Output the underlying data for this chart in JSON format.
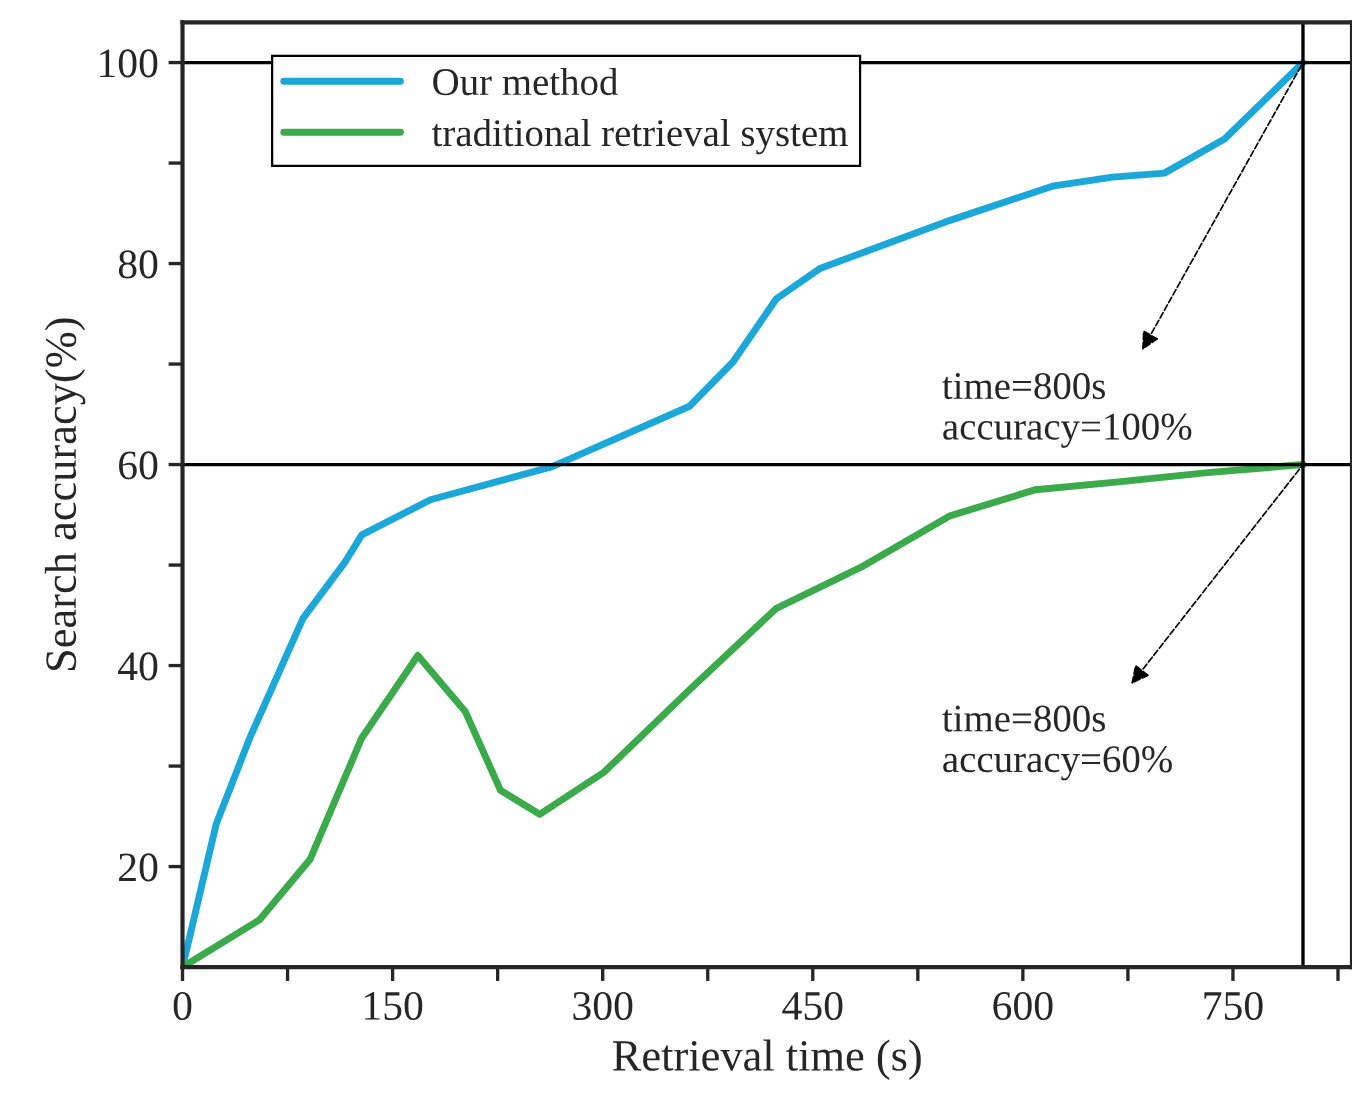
{
  "chart_data": {
    "type": "line",
    "xlabel": "Retrieval time (s)",
    "ylabel": "Search accuracy(%)",
    "series": [
      {
        "name": "Our method",
        "color": "#1ba8d8",
        "x": [
          0,
          24,
          48,
          86,
          116,
          128,
          177,
          264,
          362,
          393,
          424,
          455,
          548,
          621,
          664,
          701,
          744,
          800
        ],
        "values": [
          10,
          24.2,
          32.8,
          44.7,
          50.3,
          53,
          56.5,
          59.8,
          65.8,
          70.2,
          76.5,
          79.5,
          84.3,
          87.7,
          88.6,
          89,
          92.4,
          100
        ]
      },
      {
        "name": "traditional retrieval system",
        "color": "#3aaa4a",
        "x": [
          0,
          55,
          91,
          128,
          168,
          202,
          227,
          255,
          301,
          362,
          424,
          486,
          548,
          609,
          670,
          732,
          800
        ],
        "values": [
          10,
          14.7,
          20.7,
          32.8,
          41,
          35.4,
          27.6,
          25.2,
          29.4,
          37.6,
          45.7,
          49.9,
          54.9,
          57.5,
          58.3,
          59.2,
          60
        ]
      }
    ],
    "xlim": [
      0,
      835
    ],
    "ylim": [
      10,
      104
    ],
    "xticks": [
      0,
      {
        "value": 75,
        "label": null
      },
      150,
      {
        "value": 225,
        "label": null
      },
      300,
      {
        "value": 375,
        "label": null
      },
      450,
      {
        "value": 525,
        "label": null
      },
      600,
      {
        "value": 675,
        "label": null
      },
      750,
      {
        "value": 825,
        "label": null
      }
    ],
    "yticks": [
      20,
      {
        "value": 30,
        "label": null
      },
      40,
      {
        "value": 50,
        "label": null
      },
      60,
      {
        "value": 70,
        "label": null
      },
      80,
      {
        "value": 90,
        "label": null
      },
      100
    ],
    "ref_lines": [
      {
        "axis": "y",
        "value": 100,
        "color": "#000000"
      },
      {
        "axis": "y",
        "value": 60,
        "color": "#000000"
      },
      {
        "axis": "x",
        "value": 800,
        "color": "#000000"
      }
    ],
    "annotations": [
      {
        "text": "time=800s\naccuracy=100%",
        "x": 800,
        "y": 100
      },
      {
        "text": "time=800s\naccuracy=60%",
        "x": 800,
        "y": 60
      }
    ],
    "legend": "top left",
    "grid": false,
    "line_style": "solid",
    "marker": "none"
  }
}
